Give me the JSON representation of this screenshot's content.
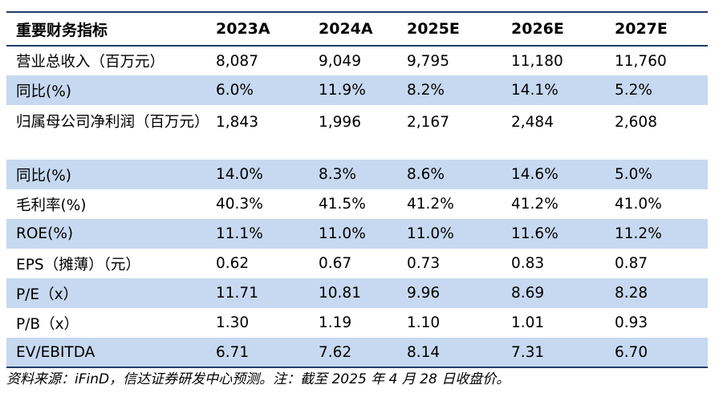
{
  "table": {
    "header": [
      "重要财务指标",
      "2023A",
      "2024A",
      "2025E",
      "2026E",
      "2027E"
    ],
    "rows": [
      {
        "label": "营业总收入（百万元）",
        "values": [
          "8,087",
          "9,049",
          "9,795",
          "11,180",
          "11,760"
        ]
      },
      {
        "label": "同比(%)",
        "values": [
          "6.0%",
          "11.9%",
          "8.2%",
          "14.1%",
          "5.2%"
        ]
      },
      {
        "label": "归属母公司净利润（百万元）",
        "values": [
          "1,843",
          "1,996",
          "2,167",
          "2,484",
          "2,608"
        ]
      },
      {
        "label": "同比(%)",
        "values": [
          "14.0%",
          "8.3%",
          "8.6%",
          "14.6%",
          "5.0%"
        ]
      },
      {
        "label": "毛利率(%)",
        "values": [
          "40.3%",
          "41.5%",
          "41.2%",
          "41.2%",
          "41.0%"
        ]
      },
      {
        "label": "ROE(%)",
        "values": [
          "11.1%",
          "11.0%",
          "11.0%",
          "11.6%",
          "11.2%"
        ]
      },
      {
        "label": "EPS（摊薄）（元）",
        "values": [
          "0.62",
          "0.67",
          "0.73",
          "0.83",
          "0.87"
        ]
      },
      {
        "label": "P/E（x）",
        "values": [
          "11.71",
          "10.81",
          "9.96",
          "8.69",
          "8.28"
        ]
      },
      {
        "label": "P/B（x）",
        "values": [
          "1.30",
          "1.19",
          "1.10",
          "1.01",
          "0.93"
        ]
      },
      {
        "label": "EV/EBITDA",
        "values": [
          "6.71",
          "7.62",
          "8.14",
          "7.31",
          "6.70"
        ]
      }
    ]
  },
  "footnote": "资料来源：iFinD，信达证券研发中心预测。注：截至 2025 年 4 月 28 日收盘价。",
  "colors": {
    "shaded_row": "#c6d9f0",
    "rule": "#1f3f6b"
  }
}
